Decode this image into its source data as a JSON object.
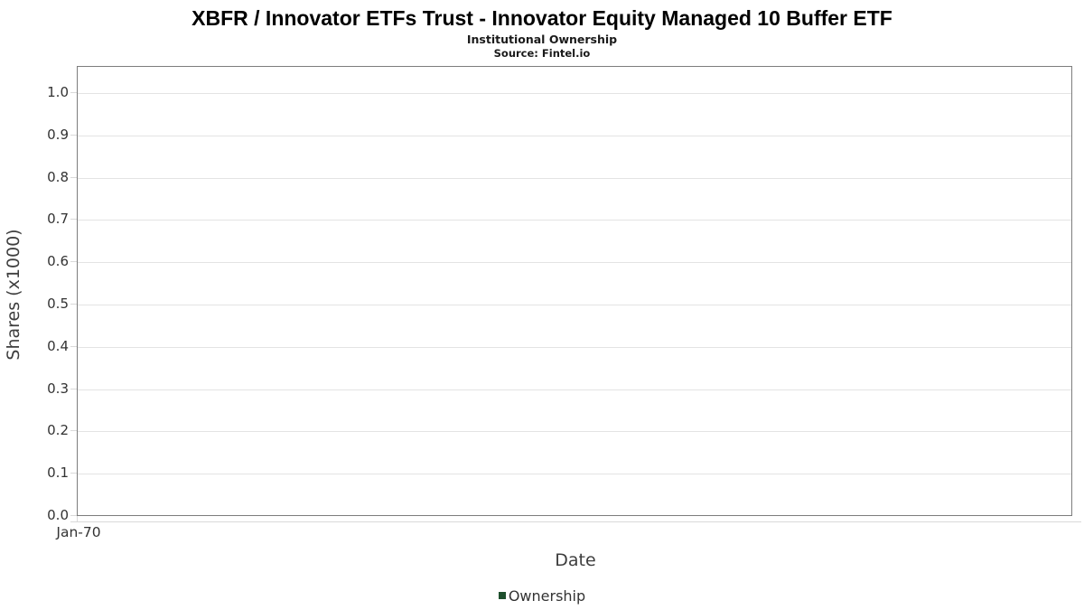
{
  "header": {
    "title": "XBFR / Innovator ETFs Trust - Innovator Equity Managed 10 Buffer ETF",
    "subtitle": "Institutional Ownership",
    "source": "Source: Fintel.io"
  },
  "chart_data": {
    "type": "line",
    "title": "XBFR / Innovator ETFs Trust - Innovator Equity Managed 10 Buffer ETF",
    "subtitle": "Institutional Ownership",
    "source": "Source: Fintel.io",
    "xlabel": "Date",
    "ylabel": "Shares (x1000)",
    "ylim": [
      0.0,
      1.0
    ],
    "y_ticks": [
      "0.0",
      "0.1",
      "0.2",
      "0.3",
      "0.4",
      "0.5",
      "0.6",
      "0.7",
      "0.8",
      "0.9",
      "1.0"
    ],
    "x_ticks": [
      "Jan-70"
    ],
    "grid": true,
    "legend_position": "bottom",
    "legend": [
      {
        "label": "Ownership",
        "color": "#1e4f2d"
      }
    ],
    "series": [
      {
        "name": "Ownership",
        "x": [],
        "values": []
      }
    ]
  }
}
